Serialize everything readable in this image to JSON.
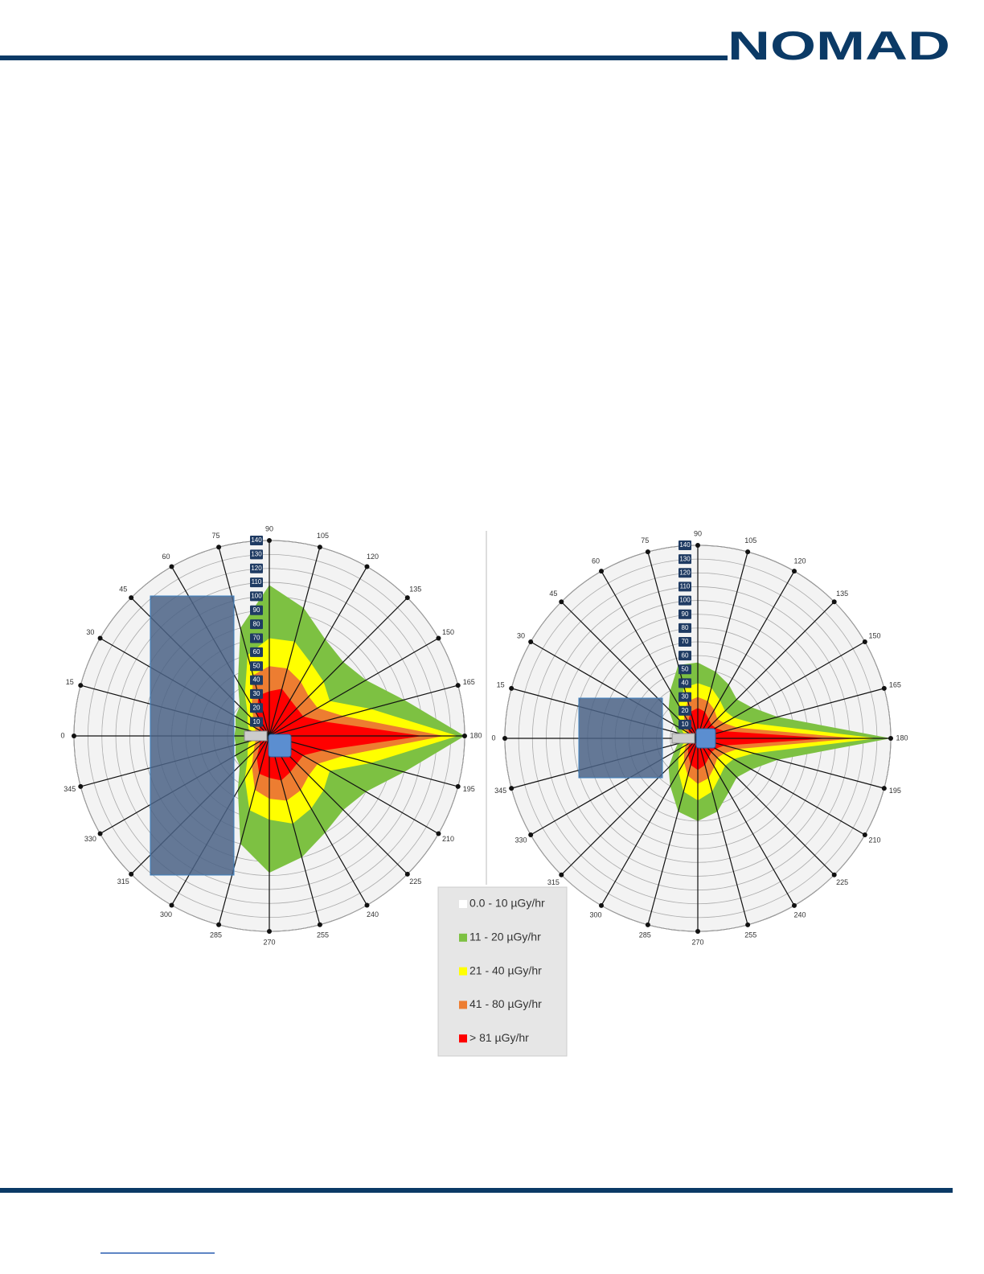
{
  "header": {
    "logo": "NOMAD"
  },
  "figure": {
    "charts": [
      {
        "angle_labels": [
          0,
          15,
          30,
          45,
          60,
          75,
          90,
          105,
          120,
          135,
          150,
          165,
          180,
          195,
          210,
          225,
          240,
          255,
          270,
          285,
          300,
          315,
          330,
          345
        ],
        "radial_labels": [
          10,
          20,
          30,
          40,
          50,
          60,
          70,
          80,
          90,
          100,
          110,
          120,
          130,
          140
        ],
        "rlim": [
          0,
          140
        ],
        "zones": [
          {
            "color": "#7dc142",
            "radii": [
              25,
              25,
              28,
              30,
              45,
              80,
              108,
              95,
              80,
              75,
              80,
              100,
              140,
              100,
              80,
              75,
              80,
              90,
              98,
              80,
              45,
              30,
              28,
              25
            ]
          },
          {
            "color": "#ffff00",
            "radii": [
              15,
              15,
              18,
              22,
              35,
              60,
              70,
              70,
              60,
              55,
              50,
              75,
              135,
              75,
              50,
              55,
              60,
              65,
              60,
              55,
              35,
              22,
              18,
              15
            ]
          },
          {
            "color": "#ed7d31",
            "radii": [
              10,
              10,
              12,
              16,
              25,
              45,
              50,
              50,
              45,
              40,
              40,
              55,
              125,
              55,
              40,
              40,
              45,
              48,
              45,
              40,
              25,
              16,
              12,
              10
            ]
          },
          {
            "color": "#ff0000",
            "radii": [
              6,
              6,
              8,
              10,
              18,
              30,
              32,
              35,
              30,
              28,
              28,
              40,
              110,
              40,
              28,
              28,
              30,
              33,
              30,
              28,
              18,
              10,
              8,
              6
            ]
          }
        ]
      },
      {
        "angle_labels": [
          0,
          15,
          30,
          45,
          60,
          75,
          90,
          105,
          120,
          135,
          150,
          165,
          180,
          195,
          210,
          225,
          240,
          255,
          270,
          285,
          300,
          315,
          330,
          345
        ],
        "radial_labels": [
          10,
          20,
          30,
          40,
          50,
          60,
          70,
          80,
          90,
          100,
          110,
          120,
          130,
          140
        ],
        "rlim": [
          0,
          140
        ],
        "zones": [
          {
            "color": "#7dc142",
            "radii": [
              12,
              15,
              20,
              30,
              40,
              55,
              55,
              50,
              45,
              40,
              45,
              60,
              140,
              60,
              45,
              40,
              45,
              55,
              60,
              55,
              40,
              30,
              20,
              15
            ]
          },
          {
            "color": "#ffff00",
            "radii": [
              8,
              10,
              14,
              20,
              28,
              38,
              40,
              38,
              32,
              28,
              30,
              42,
              130,
              42,
              30,
              28,
              32,
              40,
              45,
              40,
              28,
              20,
              14,
              10
            ]
          },
          {
            "color": "#ed7d31",
            "radii": [
              6,
              7,
              10,
              14,
              20,
              28,
              30,
              28,
              24,
              20,
              22,
              30,
              115,
              30,
              22,
              20,
              24,
              30,
              33,
              28,
              20,
              14,
              10,
              7
            ]
          },
          {
            "color": "#ff0000",
            "radii": [
              4,
              5,
              7,
              10,
              14,
              20,
              22,
              20,
              16,
              14,
              15,
              20,
              95,
              20,
              15,
              14,
              16,
              20,
              23,
              20,
              14,
              10,
              7,
              5
            ]
          }
        ]
      }
    ],
    "legend": [
      {
        "label": "0.0 - 10 µGy/hr",
        "color": "#ffffff"
      },
      {
        "label": "11 - 20 µGy/hr",
        "color": "#7dc142"
      },
      {
        "label": "21 - 40 µGy/hr",
        "color": "#ffff00"
      },
      {
        "label": "41 - 80 µGy/hr",
        "color": "#ed7d31"
      },
      {
        "label": "> 81 µGy/hr",
        "color": "#ff0000"
      }
    ]
  }
}
